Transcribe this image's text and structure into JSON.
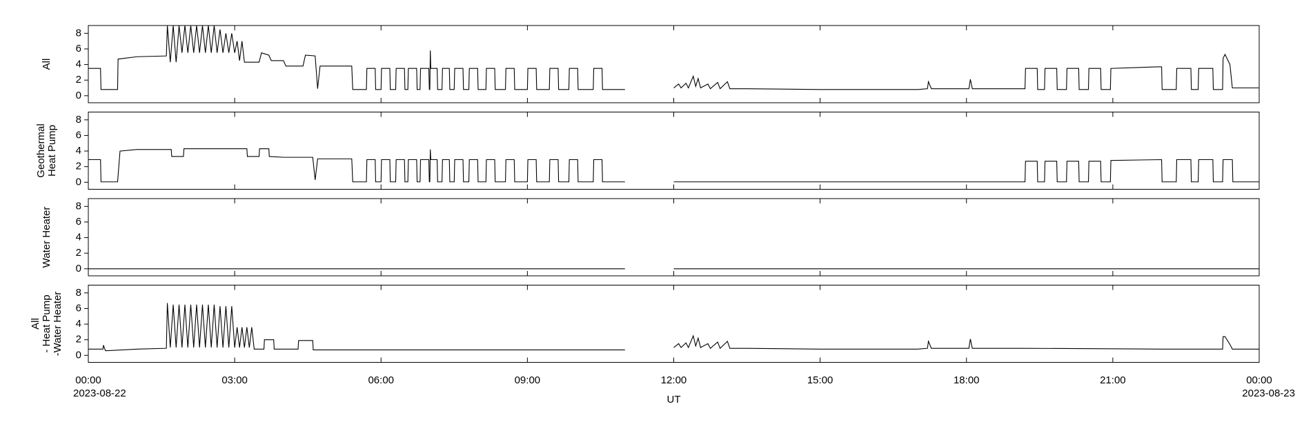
{
  "chart_data": [
    {
      "type": "line",
      "ylabel": [
        "All"
      ],
      "color": "#000000",
      "ylim": [
        -0.9,
        9
      ],
      "yticks": [
        0,
        2,
        4,
        6,
        8
      ],
      "x": [
        0,
        0.25,
        0.26,
        0.6,
        0.61,
        1.0,
        1.6,
        1.62,
        1.68,
        1.74,
        1.8,
        1.86,
        1.92,
        1.98,
        2.04,
        2.1,
        2.16,
        2.22,
        2.28,
        2.34,
        2.4,
        2.46,
        2.52,
        2.58,
        2.64,
        2.7,
        2.76,
        2.82,
        2.88,
        2.94,
        3.0,
        3.05,
        3.1,
        3.15,
        3.2,
        3.5,
        3.55,
        3.7,
        3.75,
        4.0,
        4.05,
        4.4,
        4.45,
        4.65,
        4.7,
        4.75,
        5.4,
        5.42,
        5.7,
        5.71,
        5.88,
        5.89,
        6.0,
        6.01,
        6.18,
        6.19,
        6.3,
        6.31,
        6.48,
        6.49,
        6.55,
        6.56,
        6.73,
        6.74,
        6.8,
        6.81,
        6.98,
        6.99,
        7.0,
        7.01,
        7.02,
        7.15,
        7.16,
        7.25,
        7.26,
        7.4,
        7.41,
        7.5,
        7.51,
        7.68,
        7.69,
        7.8,
        7.81,
        7.98,
        7.99,
        8.15,
        8.16,
        8.33,
        8.34,
        8.55,
        8.56,
        8.73,
        8.74,
        9.0,
        9.01,
        9.18,
        9.19,
        9.45,
        9.46,
        9.63,
        9.64,
        9.85,
        9.86,
        10.03,
        10.04,
        10.35,
        10.36,
        10.53,
        10.54,
        11.0,
        11.5,
        12.0,
        12.1,
        12.15,
        12.25,
        12.3,
        12.4,
        12.45,
        12.5,
        12.55,
        12.7,
        12.75,
        12.9,
        12.95,
        13.1,
        13.15,
        13.5,
        15,
        17.0,
        17.2,
        17.22,
        17.28,
        18.05,
        18.08,
        18.12,
        19.2,
        19.21,
        19.45,
        19.46,
        19.6,
        19.61,
        19.85,
        19.86,
        20.05,
        20.06,
        20.3,
        20.31,
        20.5,
        20.51,
        20.75,
        20.76,
        20.95,
        20.96,
        21.9,
        22.0,
        22.01,
        22.3,
        22.31,
        22.6,
        22.61,
        22.75,
        22.76,
        23.05,
        23.06,
        23.25,
        23.26,
        23.3,
        23.4,
        23.45,
        24
      ],
      "values": [
        3.5,
        3.5,
        0.8,
        0.8,
        4.7,
        5.0,
        5.1,
        9,
        4.3,
        9,
        4.3,
        9,
        5.5,
        9,
        5.5,
        9,
        5.5,
        9,
        5.5,
        9,
        5.5,
        9,
        5.5,
        9,
        5.5,
        8.5,
        5.5,
        8,
        5.5,
        8,
        5.5,
        7,
        4.5,
        7,
        4.3,
        4.3,
        5.5,
        5.2,
        4.5,
        4.5,
        3.8,
        3.8,
        5.2,
        5.1,
        0.9,
        3.8,
        3.8,
        0.8,
        0.8,
        3.5,
        3.5,
        0.8,
        0.8,
        3.5,
        3.5,
        0.8,
        0.8,
        3.5,
        3.5,
        0.8,
        0.8,
        3.5,
        3.5,
        0.8,
        0.8,
        3.5,
        3.5,
        0.8,
        0.8,
        5.8,
        3.5,
        3.5,
        0.8,
        0.8,
        3.5,
        3.5,
        0.8,
        0.8,
        3.5,
        3.5,
        0.8,
        0.8,
        3.5,
        3.5,
        0.8,
        0.8,
        3.5,
        3.5,
        0.8,
        0.8,
        3.5,
        3.5,
        0.8,
        0.8,
        3.5,
        3.5,
        0.8,
        0.8,
        3.5,
        3.5,
        0.8,
        0.8,
        3.5,
        3.5,
        0.8,
        0.8,
        3.5,
        3.5,
        0.8,
        0.8,
        null,
        1.0,
        1.5,
        1.0,
        1.6,
        1.0,
        2.5,
        1.2,
        2.2,
        1.0,
        1.5,
        0.9,
        1.7,
        0.9,
        1.8,
        0.9,
        0.9,
        0.8,
        0.8,
        0.9,
        1.8,
        0.9,
        0.9,
        2.1,
        0.9,
        0.9,
        3.5,
        3.5,
        0.8,
        0.8,
        3.5,
        3.5,
        0.8,
        0.8,
        3.5,
        3.5,
        0.8,
        0.8,
        3.5,
        3.5,
        0.8,
        0.8,
        3.5,
        3.7,
        3.7,
        0.8,
        0.8,
        3.5,
        3.5,
        0.8,
        0.8,
        3.5,
        3.5,
        0.8,
        0.8,
        4.8,
        5.3,
        4.0,
        1.0,
        1.0
      ]
    },
    {
      "type": "line",
      "ylabel": [
        "Geothermal",
        "Heat Pump"
      ],
      "color": "#000000",
      "ylim": [
        -0.9,
        9
      ],
      "yticks": [
        0,
        2,
        4,
        6,
        8
      ],
      "x": [
        0,
        0.25,
        0.26,
        0.6,
        0.65,
        1.0,
        1.7,
        1.71,
        1.95,
        1.96,
        3.25,
        3.26,
        3.5,
        3.51,
        3.7,
        3.71,
        4.0,
        4.6,
        4.65,
        4.7,
        4.75,
        5.4,
        5.42,
        5.7,
        5.71,
        5.88,
        5.89,
        6.0,
        6.01,
        6.18,
        6.19,
        6.3,
        6.31,
        6.48,
        6.49,
        6.55,
        6.56,
        6.73,
        6.74,
        6.8,
        6.81,
        6.98,
        6.99,
        7.0,
        7.01,
        7.02,
        7.15,
        7.16,
        7.25,
        7.26,
        7.4,
        7.41,
        7.5,
        7.51,
        7.68,
        7.69,
        7.8,
        7.81,
        7.98,
        7.99,
        8.15,
        8.16,
        8.33,
        8.34,
        8.55,
        8.56,
        8.73,
        8.74,
        9.0,
        9.01,
        9.18,
        9.19,
        9.45,
        9.46,
        9.63,
        9.64,
        9.85,
        9.86,
        10.03,
        10.04,
        10.35,
        10.36,
        10.53,
        10.54,
        11.0,
        11.5,
        12.0,
        19.2,
        19.21,
        19.45,
        19.46,
        19.6,
        19.61,
        19.85,
        19.86,
        20.05,
        20.06,
        20.3,
        20.31,
        20.5,
        20.51,
        20.75,
        20.76,
        20.95,
        20.96,
        22.0,
        22.01,
        22.3,
        22.31,
        22.6,
        22.61,
        22.75,
        22.76,
        23.05,
        23.06,
        23.25,
        23.26,
        23.45,
        23.46,
        24
      ],
      "values": [
        2.9,
        2.9,
        0.05,
        0.05,
        4.0,
        4.2,
        4.2,
        3.3,
        3.3,
        4.3,
        4.3,
        3.3,
        3.3,
        4.3,
        4.3,
        3.3,
        3.2,
        3.2,
        0.3,
        3.0,
        3.0,
        3.0,
        0.05,
        0.05,
        2.9,
        2.9,
        0.05,
        0.05,
        2.9,
        2.9,
        0.05,
        0.05,
        2.9,
        2.9,
        0.05,
        0.05,
        2.9,
        2.9,
        0.05,
        0.05,
        2.9,
        2.9,
        0.05,
        0.05,
        4.2,
        2.9,
        2.9,
        0.05,
        0.05,
        2.9,
        2.9,
        0.05,
        0.05,
        2.9,
        2.9,
        0.05,
        0.05,
        2.9,
        2.9,
        0.05,
        0.05,
        2.9,
        2.9,
        0.05,
        0.05,
        2.9,
        2.9,
        0.05,
        0.05,
        2.9,
        2.9,
        0.05,
        0.05,
        2.9,
        2.9,
        0.05,
        0.05,
        2.9,
        2.9,
        0.05,
        0.05,
        2.9,
        2.9,
        0.05,
        0.05,
        null,
        0.05,
        0.05,
        2.7,
        2.7,
        0.05,
        0.05,
        2.7,
        2.7,
        0.05,
        0.05,
        2.7,
        2.7,
        0.05,
        0.05,
        2.7,
        2.7,
        0.05,
        0.05,
        2.8,
        2.9,
        0.05,
        0.05,
        2.9,
        2.9,
        0.05,
        0.05,
        2.9,
        2.9,
        0.05,
        0.05,
        2.9,
        2.9,
        0.05,
        0.05
      ]
    },
    {
      "type": "line",
      "ylabel": [
        "Water Heater"
      ],
      "color": "#000000",
      "ylim": [
        -0.9,
        9
      ],
      "yticks": [
        0,
        2,
        4,
        6,
        8
      ],
      "x": [
        0,
        11,
        11.5,
        12,
        24
      ],
      "values": [
        0,
        0,
        null,
        0,
        0
      ]
    },
    {
      "type": "line",
      "ylabel": [
        "All",
        "- Heat Pump",
        "-Water Heater"
      ],
      "color": "#000000",
      "ylim": [
        -0.9,
        9
      ],
      "yticks": [
        0,
        2,
        4,
        6,
        8
      ],
      "x": [
        0,
        0.3,
        0.31,
        0.35,
        0.4,
        1.0,
        1.6,
        1.62,
        1.68,
        1.74,
        1.8,
        1.86,
        1.92,
        1.98,
        2.04,
        2.1,
        2.16,
        2.22,
        2.28,
        2.34,
        2.4,
        2.46,
        2.52,
        2.58,
        2.64,
        2.7,
        2.76,
        2.82,
        2.88,
        2.94,
        3.0,
        3.05,
        3.1,
        3.15,
        3.2,
        3.25,
        3.3,
        3.35,
        3.4,
        3.6,
        3.61,
        3.8,
        3.81,
        4.3,
        4.31,
        4.6,
        4.61,
        5.0,
        11.0,
        11.5,
        12.0,
        12.1,
        12.15,
        12.25,
        12.3,
        12.4,
        12.45,
        12.5,
        12.55,
        12.7,
        12.75,
        12.9,
        12.95,
        13.1,
        13.15,
        13.5,
        15,
        17.0,
        17.2,
        17.22,
        17.28,
        18.05,
        18.08,
        18.12,
        19.2,
        22.0,
        23.25,
        23.26,
        23.3,
        23.4,
        23.45,
        24
      ],
      "values": [
        0.8,
        0.8,
        1.3,
        0.6,
        0.6,
        0.8,
        0.9,
        6.7,
        1.0,
        6.5,
        1.0,
        6.5,
        1.0,
        6.5,
        1.0,
        6.5,
        1.0,
        6.5,
        1.0,
        6.5,
        1.0,
        6.5,
        1.0,
        6.5,
        1.0,
        6.3,
        1.0,
        6.3,
        1.0,
        6.3,
        1.0,
        3.6,
        1.0,
        3.6,
        1.0,
        3.6,
        1.0,
        3.6,
        0.8,
        0.8,
        2.0,
        2.0,
        0.8,
        0.8,
        1.9,
        1.9,
        0.7,
        0.7,
        0.7,
        null,
        1.0,
        1.5,
        1.0,
        1.6,
        1.0,
        2.5,
        1.2,
        2.2,
        1.0,
        1.5,
        0.9,
        1.7,
        0.9,
        1.8,
        0.9,
        0.9,
        0.8,
        0.8,
        0.9,
        1.8,
        0.9,
        0.9,
        2.1,
        0.9,
        0.9,
        0.8,
        0.8,
        2.4,
        2.4,
        1.4,
        0.8,
        0.8
      ],
      "xlim": [
        0,
        24
      ],
      "xticks": [
        {
          "value": 0,
          "label": "00:00"
        },
        {
          "value": 3,
          "label": "03:00"
        },
        {
          "value": 6,
          "label": "06:00"
        },
        {
          "value": 9,
          "label": "09:00"
        },
        {
          "value": 12,
          "label": "12:00"
        },
        {
          "value": 15,
          "label": "15:00"
        },
        {
          "value": 18,
          "label": "18:00"
        },
        {
          "value": 21,
          "label": "21:00"
        },
        {
          "value": 24,
          "label": "00:00"
        }
      ],
      "x_dates": [
        {
          "value": 0,
          "label": "2023-08-22"
        },
        {
          "value": 24,
          "label": "2023-08-23"
        }
      ],
      "xlabel": "UT"
    }
  ]
}
